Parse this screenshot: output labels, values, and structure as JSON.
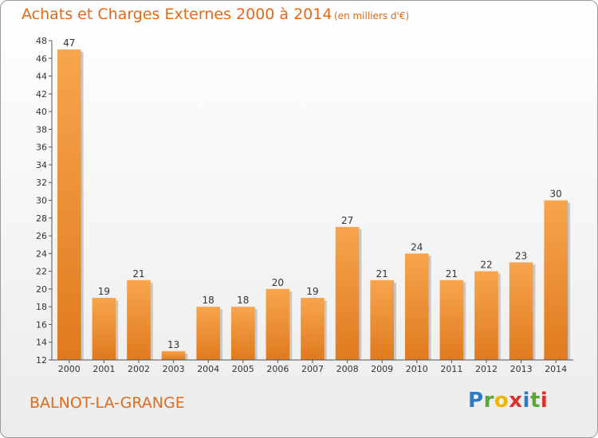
{
  "header": {
    "title": "Achats et Charges Externes 2000 à 2014",
    "subtitle": "(en milliers d'€)"
  },
  "footer": {
    "commune": "BALNOT-LA-GRANGE",
    "logo_letters": [
      "P",
      "r",
      "o",
      "x",
      "i",
      "t",
      "i"
    ]
  },
  "colors": {
    "bar_top": "#f7a54e",
    "bar_bottom": "#e07a1e",
    "title": "#e06a1a"
  },
  "chart_data": {
    "type": "bar",
    "title": "Achats et Charges Externes 2000 à 2014",
    "subtitle": "(en milliers d'€)",
    "xlabel": "",
    "ylabel": "",
    "categories": [
      "2000",
      "2001",
      "2002",
      "2003",
      "2004",
      "2005",
      "2006",
      "2007",
      "2008",
      "2009",
      "2010",
      "2011",
      "2012",
      "2013",
      "2014"
    ],
    "values": [
      47,
      19,
      21,
      13,
      18,
      18,
      20,
      19,
      27,
      21,
      24,
      21,
      22,
      23,
      30
    ],
    "ylim": [
      12,
      48
    ],
    "yticks": [
      12,
      14,
      16,
      18,
      20,
      22,
      24,
      26,
      28,
      30,
      32,
      34,
      36,
      38,
      40,
      42,
      44,
      46,
      48
    ],
    "grid": false,
    "legend": "none"
  }
}
